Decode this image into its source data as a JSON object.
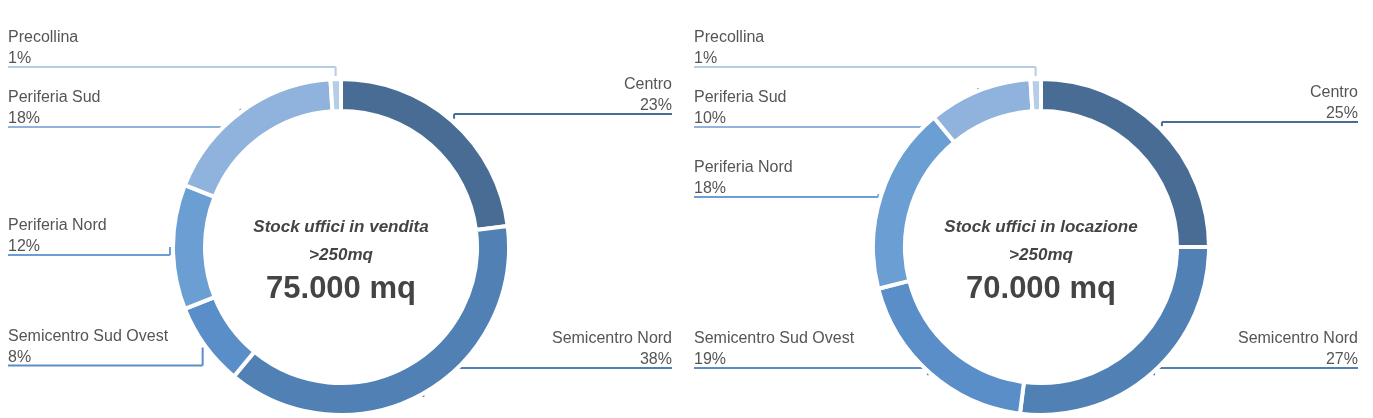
{
  "chart_data": [
    {
      "type": "donut",
      "title": "Stock uffici in vendita",
      "subtitle": ">250mq",
      "annotations": [
        "75.000 mq"
      ],
      "categories": [
        "Centro",
        "Semicentro Nord",
        "Semicentro Sud Ovest",
        "Periferia Nord",
        "Periferia Sud",
        "Precollina"
      ],
      "values": [
        23,
        38,
        8,
        12,
        18,
        1
      ],
      "value_labels": [
        "23%",
        "38%",
        "8%",
        "12%",
        "18%",
        "1%"
      ],
      "colors": [
        "#486c94",
        "#5080b4",
        "#5a8ec8",
        "#6b9fd4",
        "#8fb3dc",
        "#b5cde6"
      ]
    },
    {
      "type": "donut",
      "title": "Stock uffici in locazione",
      "subtitle": ">250mq",
      "annotations": [
        "70.000 mq"
      ],
      "categories": [
        "Centro",
        "Semicentro Nord",
        "Semicentro Sud Ovest",
        "Periferia Nord",
        "Periferia Sud",
        "Precollina"
      ],
      "values": [
        25,
        27,
        19,
        18,
        10,
        1
      ],
      "value_labels": [
        "25%",
        "27%",
        "19%",
        "18%",
        "10%",
        "1%"
      ],
      "colors": [
        "#486c94",
        "#5080b4",
        "#5a8ec8",
        "#6b9fd4",
        "#8fb3dc",
        "#b5cde6"
      ]
    }
  ]
}
